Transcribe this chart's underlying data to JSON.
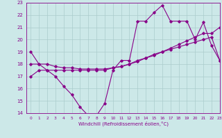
{
  "xlabel": "Windchill (Refroidissement éolien,°C)",
  "background_color": "#cce8e8",
  "grid_color": "#aacccc",
  "line_color": "#880088",
  "x_hours": [
    0,
    1,
    2,
    3,
    4,
    5,
    6,
    7,
    8,
    9,
    10,
    11,
    12,
    13,
    14,
    15,
    16,
    17,
    18,
    19,
    20,
    21,
    22,
    23
  ],
  "y_main": [
    19,
    18,
    17.5,
    17,
    16.2,
    15.5,
    14.5,
    13.8,
    13.8,
    14.8,
    17.5,
    18.3,
    18.3,
    21.5,
    21.5,
    22.2,
    22.8,
    21.5,
    21.5,
    21.5,
    20.0,
    21.4,
    19.5,
    18.3
  ],
  "y_trend1": [
    17.0,
    17.5,
    17.5,
    17.5,
    17.5,
    17.5,
    17.5,
    17.5,
    17.5,
    17.5,
    17.7,
    17.8,
    18.0,
    18.2,
    18.5,
    18.7,
    19.0,
    19.3,
    19.6,
    19.9,
    20.2,
    20.5,
    20.5,
    21.0
  ],
  "y_trend2": [
    18.0,
    18.0,
    18.0,
    17.8,
    17.7,
    17.7,
    17.6,
    17.6,
    17.6,
    17.6,
    17.7,
    17.8,
    18.0,
    18.3,
    18.5,
    18.8,
    19.0,
    19.2,
    19.4,
    19.6,
    19.8,
    20.0,
    20.2,
    18.3
  ],
  "ylim": [
    14,
    23
  ],
  "xlim": [
    -0.5,
    23
  ],
  "yticks": [
    14,
    15,
    16,
    17,
    18,
    19,
    20,
    21,
    22,
    23
  ],
  "xticks": [
    0,
    1,
    2,
    3,
    4,
    5,
    6,
    7,
    8,
    9,
    10,
    11,
    12,
    13,
    14,
    15,
    16,
    17,
    18,
    19,
    20,
    21,
    22,
    23
  ]
}
